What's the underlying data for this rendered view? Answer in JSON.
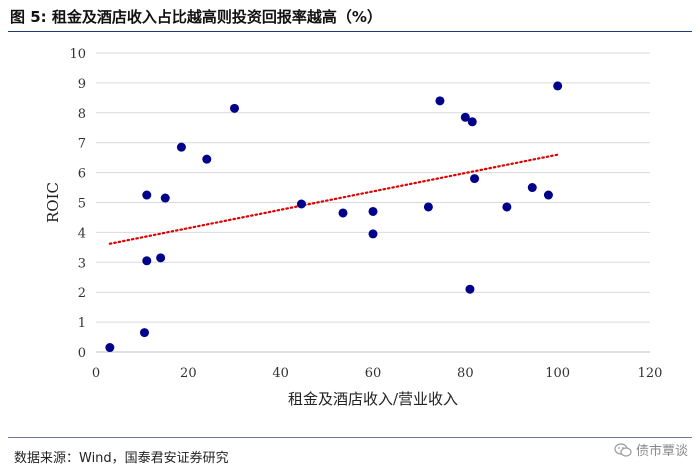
{
  "header": {
    "title": "图 5:  租金及酒店收入占比越高则投资回报率越高（%）"
  },
  "footer": {
    "source": "数据来源：Wind，国泰君安证券研究",
    "watermark": "债市覃谈"
  },
  "colors": {
    "points": "#00008b",
    "trendline": "#e00000",
    "grid": "#d9d9d9",
    "rule": "#1f3a7a"
  },
  "chart_data": {
    "type": "scatter",
    "title": "",
    "xlabel": "租金及酒店收入/营业收入",
    "ylabel": "ROIC",
    "xlim": [
      0,
      120
    ],
    "ylim": [
      0,
      10
    ],
    "xticks": [
      0,
      20,
      40,
      60,
      80,
      100,
      120
    ],
    "yticks": [
      0,
      1,
      2,
      3,
      4,
      5,
      6,
      7,
      8,
      9,
      10
    ],
    "grid": "horizontal",
    "points": [
      {
        "x": 3,
        "y": 0.15
      },
      {
        "x": 10.5,
        "y": 0.65
      },
      {
        "x": 11,
        "y": 3.05
      },
      {
        "x": 14,
        "y": 3.15
      },
      {
        "x": 11,
        "y": 5.25
      },
      {
        "x": 15,
        "y": 5.15
      },
      {
        "x": 18.5,
        "y": 6.85
      },
      {
        "x": 24,
        "y": 6.45
      },
      {
        "x": 30,
        "y": 8.15
      },
      {
        "x": 44.5,
        "y": 4.95
      },
      {
        "x": 53.5,
        "y": 4.65
      },
      {
        "x": 60,
        "y": 4.7
      },
      {
        "x": 60,
        "y": 3.95
      },
      {
        "x": 72,
        "y": 4.85
      },
      {
        "x": 74.5,
        "y": 8.4
      },
      {
        "x": 80,
        "y": 7.85
      },
      {
        "x": 81.5,
        "y": 7.7
      },
      {
        "x": 82,
        "y": 5.8
      },
      {
        "x": 81,
        "y": 2.1
      },
      {
        "x": 89,
        "y": 4.85
      },
      {
        "x": 94.5,
        "y": 5.5
      },
      {
        "x": 98,
        "y": 5.25
      },
      {
        "x": 100,
        "y": 8.9
      }
    ],
    "trendline": {
      "x": [
        3,
        100
      ],
      "y": [
        3.62,
        6.6
      ],
      "style": "dotted"
    }
  }
}
